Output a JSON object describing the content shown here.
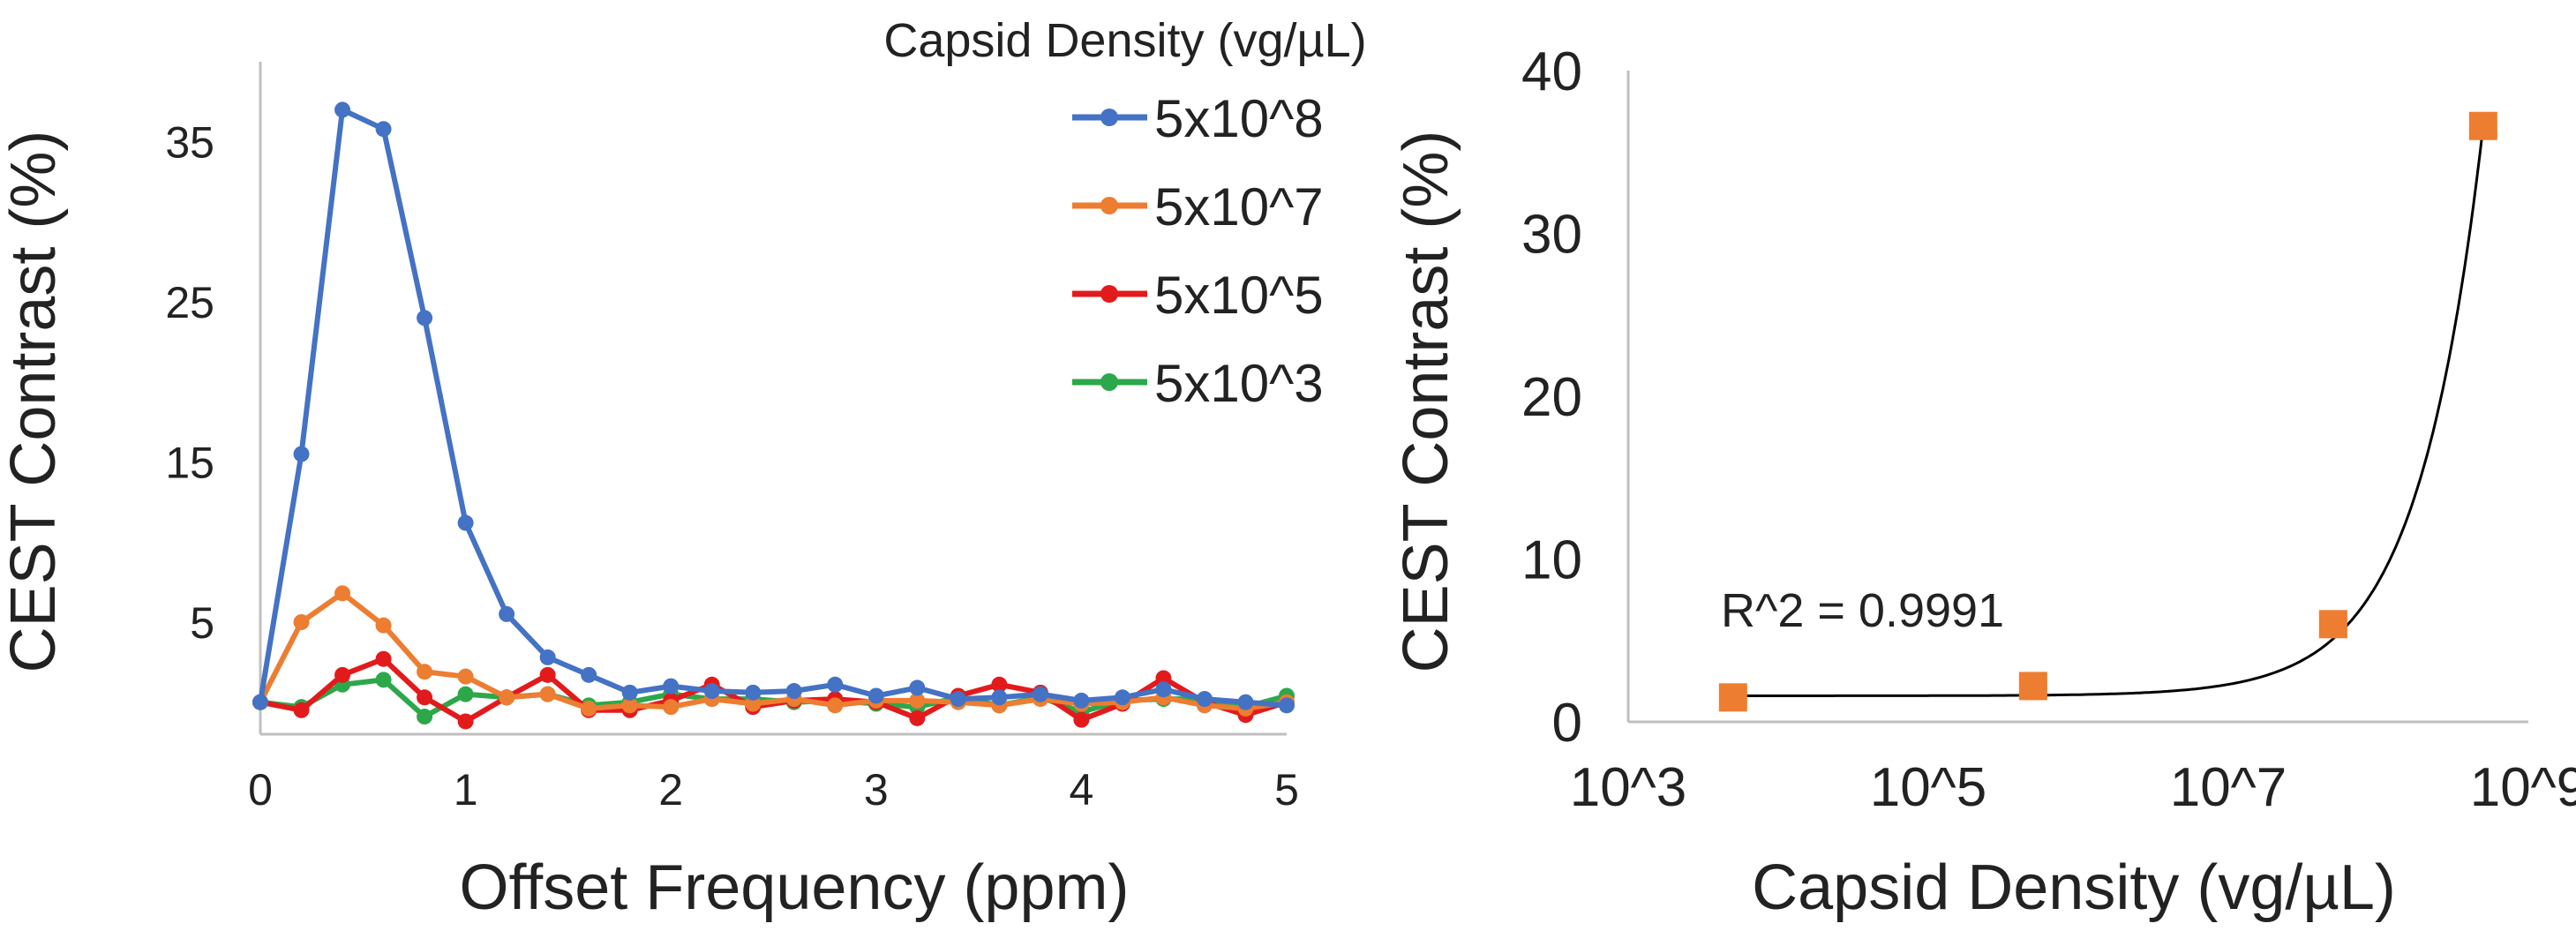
{
  "chart_data": [
    {
      "type": "line",
      "title": "",
      "xlabel": "Offset Frequency (ppm)",
      "ylabel": "CEST Contrast (%)",
      "xlim": [
        0,
        5
      ],
      "ylim": [
        -2,
        40
      ],
      "x_ticks": [
        "0",
        "1",
        "2",
        "3",
        "4",
        "5"
      ],
      "y_ticks": [
        "5",
        "15",
        "25",
        "35"
      ],
      "legend_title": "Capsid Density (vg/µL)",
      "legend_position": "top-right",
      "grid": false,
      "x": [
        0,
        0.2,
        0.4,
        0.6,
        0.8,
        1.0,
        1.2,
        1.4,
        1.6,
        1.8,
        2.0,
        2.2,
        2.4,
        2.6,
        2.8,
        3.0,
        3.2,
        3.4,
        3.6,
        3.8,
        4.0,
        4.2,
        4.4,
        4.6,
        4.8,
        5.0
      ],
      "series": [
        {
          "name": "5x10^8",
          "color": "#4472C4",
          "values": [
            0,
            15.5,
            37,
            35.8,
            24,
            11.2,
            5.5,
            2.8,
            1.7,
            0.6,
            1.0,
            0.7,
            0.6,
            0.7,
            1.1,
            0.4,
            0.9,
            0.2,
            0.3,
            0.5,
            0.1,
            0.3,
            0.8,
            0.2,
            0,
            -0.2
          ]
        },
        {
          "name": "5x10^7",
          "color": "#ED7D31",
          "values": [
            0,
            5,
            6.8,
            4.8,
            1.9,
            1.6,
            0.3,
            0.5,
            -0.4,
            -0.2,
            -0.3,
            0.2,
            -0.1,
            0.2,
            -0.2,
            0.1,
            0.1,
            0,
            -0.2,
            0.2,
            -0.1,
            0,
            0.3,
            -0.2,
            -0.4,
            0
          ]
        },
        {
          "name": "5x10^5",
          "color": "#E31A1C",
          "values": [
            0,
            -0.5,
            1.7,
            2.7,
            0.3,
            -1.2,
            0.3,
            1.7,
            -0.5,
            -0.5,
            0.1,
            1.1,
            -0.3,
            0.1,
            0.2,
            0,
            -1.0,
            0.4,
            1.1,
            0.6,
            -1.1,
            -0.1,
            1.5,
            0,
            -0.8,
            0
          ]
        },
        {
          "name": "5x10^3",
          "color": "#2CA84A",
          "values": [
            0,
            -0.3,
            1.1,
            1.4,
            -0.9,
            0.5,
            0.3,
            0.5,
            -0.2,
            0,
            0.5,
            0.2,
            0.2,
            0,
            0.1,
            -0.1,
            -0.3,
            0.3,
            -0.2,
            0.3,
            -0.6,
            0.1,
            0.2,
            0.2,
            -0.3,
            0.4
          ]
        }
      ]
    },
    {
      "type": "scatter",
      "title": "",
      "xlabel": "Capsid Density (vg/µL)",
      "ylabel": "CEST Contrast (%)",
      "x_scale": "log10",
      "xlim": [
        1000,
        1000000000
      ],
      "ylim": [
        0,
        40
      ],
      "x_ticks": [
        "10^3",
        "10^5",
        "10^7",
        "10^9"
      ],
      "y_ticks": [
        "0",
        "10",
        "20",
        "30",
        "40"
      ],
      "grid": false,
      "annotation": "R^2 = 0.9991",
      "points": [
        {
          "x": 5000,
          "y": 1.5
        },
        {
          "x": 500000,
          "y": 2.2
        },
        {
          "x": 50000000,
          "y": 6.0
        },
        {
          "x": 500000000,
          "y": 36.6
        }
      ],
      "point_color": "#ED7D31",
      "fit": {
        "type": "linear",
        "color": "#000000",
        "slope_per_vg": 7e-08,
        "intercept": 1.6
      }
    }
  ]
}
